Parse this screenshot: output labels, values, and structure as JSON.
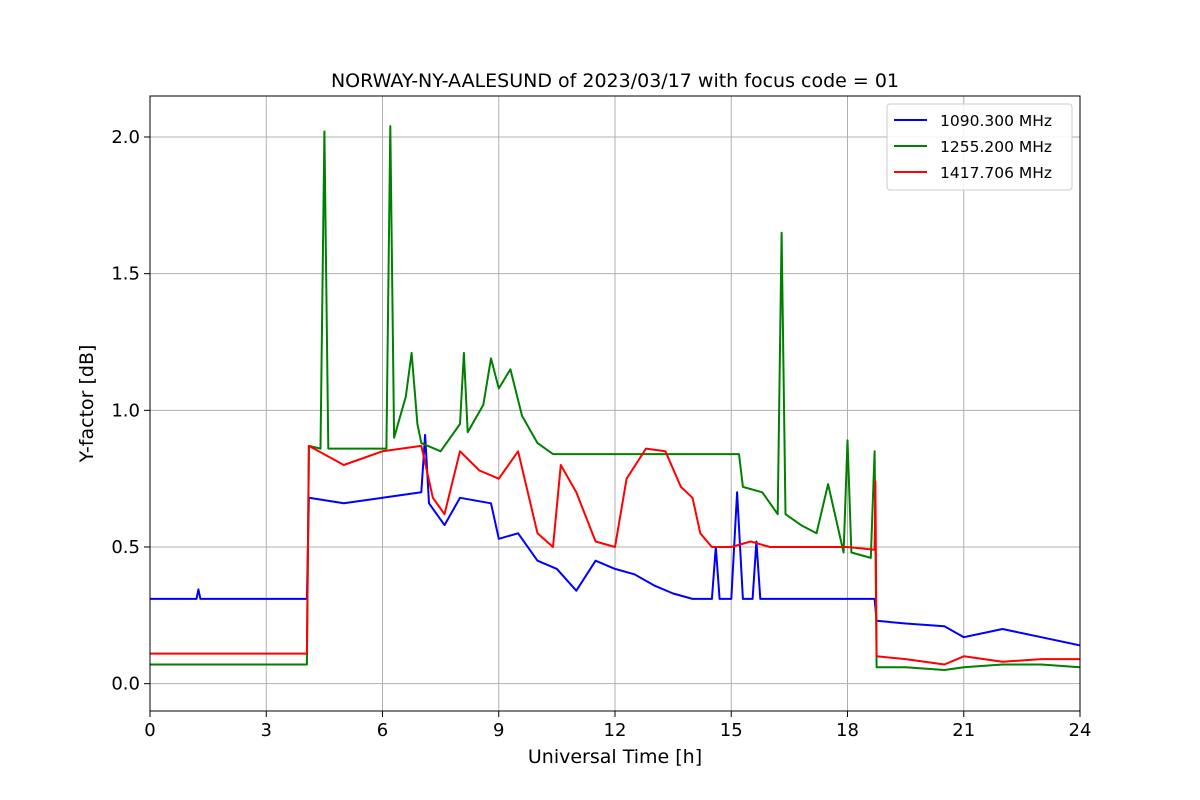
{
  "chart_data": {
    "type": "line",
    "title": "NORWAY-NY-AALESUND of 2023/03/17 with focus code = 01",
    "xlabel": "Universal Time [h]",
    "ylabel": "Y-factor [dB]",
    "xlim": [
      0,
      24
    ],
    "ylim": [
      -0.1,
      2.15
    ],
    "xticks": [
      0,
      3,
      6,
      9,
      12,
      15,
      18,
      21,
      24
    ],
    "yticks": [
      0.0,
      0.5,
      1.0,
      1.5,
      2.0
    ],
    "xtick_labels": [
      "0",
      "3",
      "6",
      "9",
      "12",
      "15",
      "18",
      "21",
      "24"
    ],
    "ytick_labels": [
      "0.0",
      "0.5",
      "1.0",
      "1.5",
      "2.0"
    ],
    "grid": true,
    "legend_position": "top-right",
    "series": [
      {
        "name": "1090.300 MHz",
        "color": "#0000ff",
        "points": [
          [
            0,
            0.31
          ],
          [
            1.2,
            0.31
          ],
          [
            1.25,
            0.345
          ],
          [
            1.3,
            0.31
          ],
          [
            4.05,
            0.31
          ],
          [
            4.1,
            0.68
          ],
          [
            5.0,
            0.66
          ],
          [
            6.0,
            0.68
          ],
          [
            7.0,
            0.7
          ],
          [
            7.1,
            0.91
          ],
          [
            7.2,
            0.66
          ],
          [
            7.6,
            0.58
          ],
          [
            8.0,
            0.68
          ],
          [
            8.8,
            0.66
          ],
          [
            9.0,
            0.53
          ],
          [
            9.5,
            0.55
          ],
          [
            10.0,
            0.45
          ],
          [
            10.5,
            0.42
          ],
          [
            11.0,
            0.34
          ],
          [
            11.5,
            0.45
          ],
          [
            12.0,
            0.42
          ],
          [
            12.5,
            0.4
          ],
          [
            13.0,
            0.36
          ],
          [
            13.5,
            0.33
          ],
          [
            14.0,
            0.31
          ],
          [
            14.5,
            0.31
          ],
          [
            14.6,
            0.5
          ],
          [
            14.7,
            0.31
          ],
          [
            15.0,
            0.31
          ],
          [
            15.15,
            0.7
          ],
          [
            15.3,
            0.31
          ],
          [
            15.55,
            0.31
          ],
          [
            15.65,
            0.52
          ],
          [
            15.75,
            0.31
          ],
          [
            18.7,
            0.31
          ],
          [
            18.75,
            0.23
          ],
          [
            19.5,
            0.22
          ],
          [
            20.5,
            0.21
          ],
          [
            21.0,
            0.17
          ],
          [
            22.0,
            0.2
          ],
          [
            23.0,
            0.17
          ],
          [
            24.0,
            0.14
          ]
        ]
      },
      {
        "name": "1255.200 MHz",
        "color": "#008000",
        "points": [
          [
            0,
            0.07
          ],
          [
            1.1,
            0.07
          ],
          [
            4.05,
            0.07
          ],
          [
            4.1,
            0.87
          ],
          [
            4.4,
            0.86
          ],
          [
            4.5,
            2.02
          ],
          [
            4.6,
            0.86
          ],
          [
            6.1,
            0.86
          ],
          [
            6.2,
            2.04
          ],
          [
            6.3,
            0.9
          ],
          [
            6.6,
            1.05
          ],
          [
            6.75,
            1.21
          ],
          [
            6.9,
            0.95
          ],
          [
            7.0,
            0.88
          ],
          [
            7.5,
            0.85
          ],
          [
            8.0,
            0.95
          ],
          [
            8.1,
            1.21
          ],
          [
            8.2,
            0.92
          ],
          [
            8.6,
            1.02
          ],
          [
            8.8,
            1.19
          ],
          [
            9.0,
            1.08
          ],
          [
            9.3,
            1.15
          ],
          [
            9.6,
            0.98
          ],
          [
            10.0,
            0.88
          ],
          [
            10.4,
            0.84
          ],
          [
            11.0,
            0.84
          ],
          [
            12.0,
            0.84
          ],
          [
            13.0,
            0.84
          ],
          [
            14.0,
            0.84
          ],
          [
            14.5,
            0.84
          ],
          [
            15.2,
            0.84
          ],
          [
            15.3,
            0.72
          ],
          [
            15.8,
            0.7
          ],
          [
            16.2,
            0.62
          ],
          [
            16.3,
            1.65
          ],
          [
            16.4,
            0.62
          ],
          [
            16.8,
            0.58
          ],
          [
            17.2,
            0.55
          ],
          [
            17.5,
            0.73
          ],
          [
            17.9,
            0.48
          ],
          [
            18.0,
            0.89
          ],
          [
            18.1,
            0.48
          ],
          [
            18.6,
            0.46
          ],
          [
            18.7,
            0.85
          ],
          [
            18.75,
            0.06
          ],
          [
            19.5,
            0.06
          ],
          [
            20.5,
            0.05
          ],
          [
            21.0,
            0.06
          ],
          [
            22.0,
            0.07
          ],
          [
            23.0,
            0.07
          ],
          [
            24.0,
            0.06
          ]
        ]
      },
      {
        "name": "1417.706 MHz",
        "color": "#ff0000",
        "points": [
          [
            0,
            0.11
          ],
          [
            1.0,
            0.11
          ],
          [
            4.05,
            0.11
          ],
          [
            4.1,
            0.87
          ],
          [
            5.0,
            0.8
          ],
          [
            6.0,
            0.85
          ],
          [
            7.0,
            0.87
          ],
          [
            7.3,
            0.68
          ],
          [
            7.6,
            0.62
          ],
          [
            8.0,
            0.85
          ],
          [
            8.5,
            0.78
          ],
          [
            9.0,
            0.75
          ],
          [
            9.5,
            0.85
          ],
          [
            10.0,
            0.55
          ],
          [
            10.4,
            0.5
          ],
          [
            10.6,
            0.8
          ],
          [
            11.0,
            0.7
          ],
          [
            11.5,
            0.52
          ],
          [
            12.0,
            0.5
          ],
          [
            12.3,
            0.75
          ],
          [
            12.8,
            0.86
          ],
          [
            13.3,
            0.85
          ],
          [
            13.7,
            0.72
          ],
          [
            14.0,
            0.68
          ],
          [
            14.2,
            0.55
          ],
          [
            14.5,
            0.5
          ],
          [
            15.0,
            0.5
          ],
          [
            15.5,
            0.52
          ],
          [
            16.0,
            0.5
          ],
          [
            17.0,
            0.5
          ],
          [
            18.0,
            0.5
          ],
          [
            18.7,
            0.49
          ],
          [
            18.72,
            0.74
          ],
          [
            18.75,
            0.1
          ],
          [
            19.5,
            0.09
          ],
          [
            20.5,
            0.07
          ],
          [
            21.0,
            0.1
          ],
          [
            22.0,
            0.08
          ],
          [
            23.0,
            0.09
          ],
          [
            24.0,
            0.09
          ]
        ]
      }
    ]
  }
}
